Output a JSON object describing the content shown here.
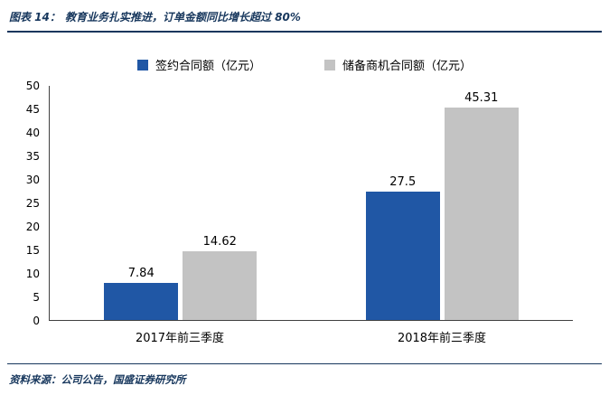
{
  "header": {
    "label": "图表 14：",
    "title": "教育业务扎实推进，订单金额同比增长超过 80%"
  },
  "footer": {
    "source": "资料来源：公司公告，国盛证券研究所"
  },
  "colors": {
    "accent_navy": "#17375D",
    "bar_blue": "#2057A5",
    "bar_gray": "#C3C3C3",
    "axis": "#404040"
  },
  "chart_data": {
    "type": "bar",
    "title": "教育业务扎实推进，订单金额同比增长超过 80%",
    "categories": [
      "2017年前三季度",
      "2018年前三季度"
    ],
    "series": [
      {
        "name": "签约合同额（亿元）",
        "color": "#2057A5",
        "values": [
          7.84,
          27.5
        ]
      },
      {
        "name": "储备商机合同额（亿元）",
        "color": "#C3C3C3",
        "values": [
          14.62,
          45.31
        ]
      }
    ],
    "xlabel": "",
    "ylabel": "",
    "ylim": [
      0,
      50
    ],
    "y_ticks": [
      0,
      5,
      10,
      15,
      20,
      25,
      30,
      35,
      40,
      45,
      50
    ],
    "grid": false,
    "legend_position": "top"
  }
}
